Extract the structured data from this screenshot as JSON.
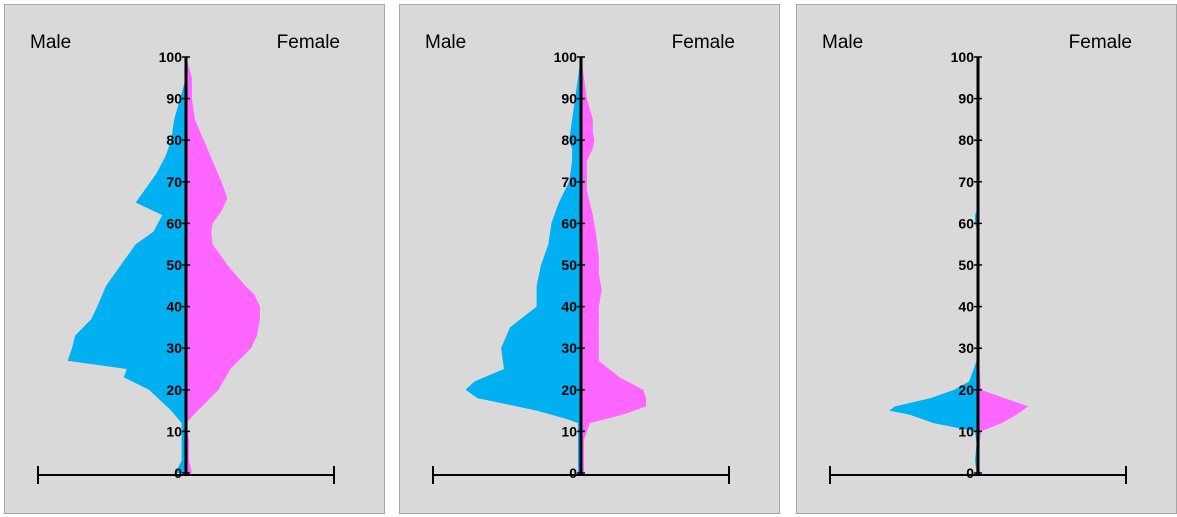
{
  "colors": {
    "male": "#00b0f0",
    "female": "#ff66ff",
    "axis": "#000000",
    "panel": "#d9d9d9",
    "border": "#a6a6a6"
  },
  "chart_data": [
    {
      "type": "area",
      "title": "",
      "labels": {
        "left": "Male",
        "right": "Female"
      },
      "y_ticks": [
        0,
        10,
        20,
        30,
        40,
        50,
        60,
        70,
        80,
        90,
        100
      ],
      "ylim": [
        0,
        100
      ],
      "xlim": [
        -100,
        100
      ],
      "series": [
        {
          "name": "Male",
          "color": "#00b0f0",
          "points": [
            [
              0,
              7
            ],
            [
              3,
              3
            ],
            [
              8,
              3
            ],
            [
              12,
              3
            ],
            [
              15,
              10
            ],
            [
              20,
              25
            ],
            [
              23,
              42
            ],
            [
              25,
              40
            ],
            [
              27,
              80
            ],
            [
              30,
              77
            ],
            [
              33,
              75
            ],
            [
              37,
              64
            ],
            [
              40,
              60
            ],
            [
              45,
              54
            ],
            [
              50,
              44
            ],
            [
              55,
              34
            ],
            [
              58,
              22
            ],
            [
              62,
              16
            ],
            [
              65,
              34
            ],
            [
              68,
              28
            ],
            [
              72,
              20
            ],
            [
              76,
              14
            ],
            [
              80,
              10
            ],
            [
              85,
              8
            ],
            [
              90,
              4
            ],
            [
              95,
              0
            ],
            [
              100,
              0
            ]
          ]
        },
        {
          "name": "Female",
          "color": "#ff66ff",
          "points": [
            [
              0,
              4
            ],
            [
              3,
              2
            ],
            [
              8,
              2
            ],
            [
              12,
              0
            ],
            [
              15,
              8
            ],
            [
              20,
              22
            ],
            [
              25,
              30
            ],
            [
              30,
              44
            ],
            [
              33,
              48
            ],
            [
              37,
              50
            ],
            [
              40,
              50
            ],
            [
              43,
              46
            ],
            [
              45,
              40
            ],
            [
              50,
              28
            ],
            [
              55,
              18
            ],
            [
              58,
              17
            ],
            [
              60,
              18
            ],
            [
              63,
              24
            ],
            [
              66,
              28
            ],
            [
              70,
              24
            ],
            [
              75,
              18
            ],
            [
              80,
              12
            ],
            [
              85,
              6
            ],
            [
              90,
              4
            ],
            [
              95,
              4
            ],
            [
              100,
              0
            ]
          ]
        }
      ]
    },
    {
      "type": "area",
      "title": "",
      "labels": {
        "left": "Male",
        "right": "Female"
      },
      "y_ticks": [
        0,
        10,
        20,
        30,
        40,
        50,
        60,
        70,
        80,
        90,
        100
      ],
      "ylim": [
        0,
        100
      ],
      "xlim": [
        -100,
        100
      ],
      "series": [
        {
          "name": "Male",
          "color": "#00b0f0",
          "points": [
            [
              0,
              2
            ],
            [
              3,
              2
            ],
            [
              8,
              2
            ],
            [
              12,
              2
            ],
            [
              13,
              10
            ],
            [
              15,
              30
            ],
            [
              18,
              70
            ],
            [
              20,
              78
            ],
            [
              22,
              72
            ],
            [
              25,
              52
            ],
            [
              30,
              54
            ],
            [
              35,
              48
            ],
            [
              40,
              30
            ],
            [
              45,
              30
            ],
            [
              50,
              27
            ],
            [
              55,
              22
            ],
            [
              60,
              20
            ],
            [
              65,
              15
            ],
            [
              70,
              8
            ],
            [
              75,
              6
            ],
            [
              78,
              6
            ],
            [
              80,
              8
            ],
            [
              85,
              6
            ],
            [
              90,
              4
            ],
            [
              95,
              2
            ],
            [
              100,
              0
            ]
          ]
        },
        {
          "name": "Female",
          "color": "#ff66ff",
          "points": [
            [
              0,
              2
            ],
            [
              3,
              2
            ],
            [
              8,
              2
            ],
            [
              12,
              6
            ],
            [
              14,
              28
            ],
            [
              16,
              44
            ],
            [
              18,
              44
            ],
            [
              20,
              42
            ],
            [
              23,
              26
            ],
            [
              27,
              12
            ],
            [
              30,
              12
            ],
            [
              35,
              12
            ],
            [
              40,
              12
            ],
            [
              44,
              14
            ],
            [
              48,
              12
            ],
            [
              52,
              12
            ],
            [
              58,
              10
            ],
            [
              62,
              8
            ],
            [
              68,
              4
            ],
            [
              75,
              4
            ],
            [
              78,
              8
            ],
            [
              80,
              9
            ],
            [
              82,
              8
            ],
            [
              85,
              8
            ],
            [
              90,
              4
            ],
            [
              95,
              2
            ],
            [
              100,
              0
            ]
          ]
        }
      ]
    },
    {
      "type": "area",
      "title": "",
      "labels": {
        "left": "Male",
        "right": "Female"
      },
      "y_ticks": [
        0,
        10,
        20,
        30,
        40,
        50,
        60,
        70,
        80,
        90,
        100
      ],
      "ylim": [
        0,
        100
      ],
      "xlim": [
        -100,
        100
      ],
      "series": [
        {
          "name": "Male",
          "color": "#00b0f0",
          "points": [
            [
              0,
              1
            ],
            [
              3,
              2
            ],
            [
              7,
              1
            ],
            [
              10,
              2
            ],
            [
              12,
              30
            ],
            [
              14,
              46
            ],
            [
              15,
              60
            ],
            [
              16,
              56
            ],
            [
              18,
              32
            ],
            [
              20,
              16
            ],
            [
              22,
              6
            ],
            [
              25,
              3
            ],
            [
              28,
              0
            ],
            [
              58,
              0
            ],
            [
              60,
              2
            ],
            [
              62,
              2
            ],
            [
              64,
              0
            ],
            [
              88,
              0
            ],
            [
              90,
              1
            ],
            [
              92,
              0
            ],
            [
              100,
              0
            ]
          ]
        },
        {
          "name": "Female",
          "color": "#ff66ff",
          "points": [
            [
              0,
              1
            ],
            [
              3,
              1
            ],
            [
              7,
              1
            ],
            [
              10,
              2
            ],
            [
              12,
              16
            ],
            [
              14,
              26
            ],
            [
              16,
              34
            ],
            [
              18,
              18
            ],
            [
              19,
              10
            ],
            [
              20,
              2
            ],
            [
              25,
              1
            ],
            [
              28,
              1
            ],
            [
              30,
              0
            ],
            [
              60,
              0
            ],
            [
              62,
              1
            ],
            [
              64,
              0
            ],
            [
              100,
              0
            ]
          ]
        }
      ]
    }
  ]
}
